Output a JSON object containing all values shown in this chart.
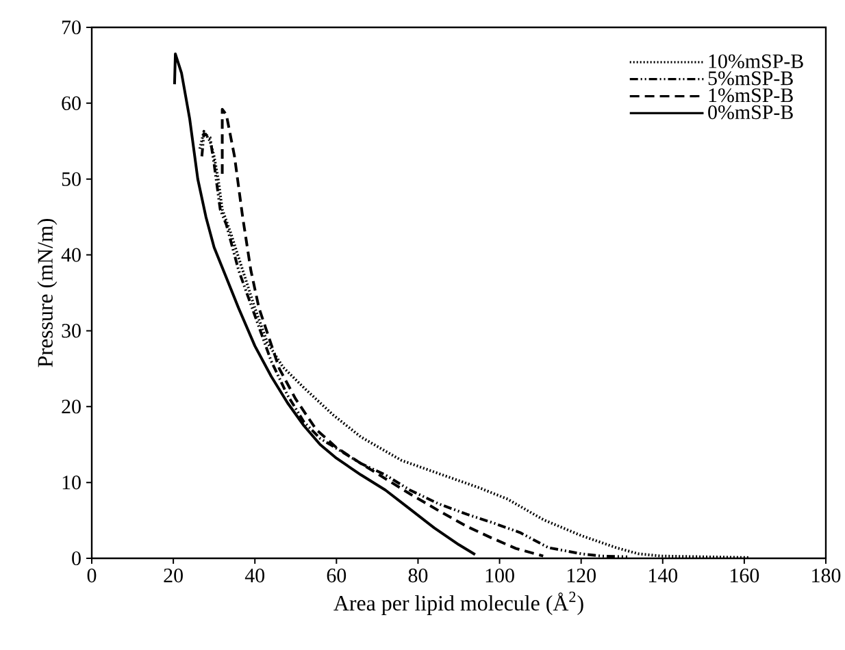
{
  "chart_data": {
    "type": "line",
    "xlabel": "Area per lipid molecule (Å$^{2}$)",
    "ylabel": "Pressure (mN/m)",
    "xlim": [
      0,
      180
    ],
    "ylim": [
      0,
      70
    ],
    "xticks": [
      0,
      20,
      40,
      60,
      80,
      100,
      120,
      140,
      160,
      180
    ],
    "yticks": [
      0,
      10,
      20,
      30,
      40,
      50,
      60,
      70
    ],
    "grid": false,
    "legend": "top right",
    "marker": "none",
    "series": [
      {
        "name": "10%mSP-B",
        "color": "#000000",
        "line_style": "dotted",
        "x": [
          26.5,
          27.5,
          29,
          30,
          31,
          32,
          34,
          37,
          40,
          43,
          46.9,
          52,
          59.2,
          66,
          76,
          86,
          95,
          102,
          110.7,
          120,
          128.6,
          134,
          139.7,
          150,
          161
        ],
        "values": [
          54,
          56.3,
          55,
          53,
          50,
          46,
          43,
          38,
          33,
          28.5,
          25.2,
          22.5,
          18.9,
          16,
          12.9,
          11,
          9.3,
          7.8,
          5.1,
          3,
          1.4,
          0.6,
          0.3,
          0.2,
          0.1
        ]
      },
      {
        "name": "5%mSP-B",
        "color": "#000000",
        "line_style": "dashdotdot",
        "x": [
          27,
          27.5,
          29,
          30,
          31,
          31.5,
          33,
          36,
          40,
          44,
          48,
          52,
          56,
          60,
          66,
          72,
          78,
          85,
          92,
          98,
          105,
          112,
          120,
          125,
          131.3
        ],
        "values": [
          53,
          56,
          55.5,
          52,
          48,
          46,
          44,
          38,
          32,
          26,
          21.5,
          18,
          15.8,
          14.5,
          12.5,
          11,
          9,
          7.2,
          5.8,
          4.75,
          3.4,
          1.4,
          0.6,
          0.3,
          0.2
        ]
      },
      {
        "name": "1%mSP-B",
        "color": "#000000",
        "line_style": "dashed",
        "x": [
          32,
          32,
          33,
          35,
          37,
          39,
          41,
          43.5,
          46,
          50,
          55,
          60,
          66,
          72,
          78,
          85,
          92,
          98,
          104,
          110.7
        ],
        "values": [
          50.7,
          59.2,
          58.5,
          53,
          45,
          38,
          33,
          29,
          25,
          21,
          17,
          14.6,
          12.5,
          10.5,
          8.5,
          6.3,
          4.2,
          2.7,
          1.3,
          0.3
        ]
      },
      {
        "name": "0%mSP-B",
        "color": "#000000",
        "line_style": "solid",
        "x": [
          20.3,
          20.5,
          22,
          24,
          26,
          28,
          30,
          33,
          36,
          40,
          44,
          48,
          52,
          56,
          60,
          66,
          72,
          78,
          84,
          90,
          94
        ],
        "values": [
          62.5,
          66.5,
          64,
          58,
          50,
          45,
          41,
          37,
          33,
          28,
          24,
          20.5,
          17.5,
          15,
          13.2,
          11,
          9,
          6.5,
          4,
          1.8,
          0.5
        ]
      }
    ]
  }
}
